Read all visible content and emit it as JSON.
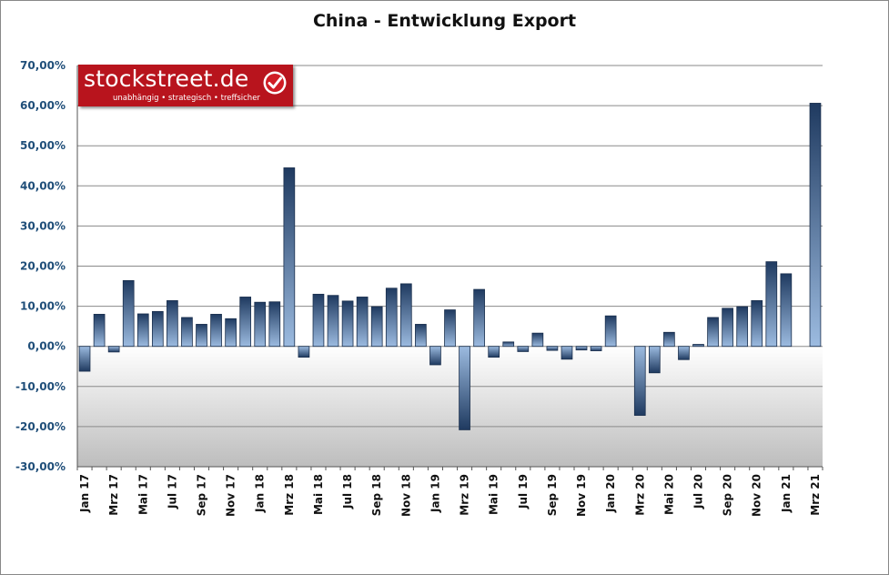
{
  "chart_data": {
    "type": "bar",
    "title": "China - Entwicklung Export",
    "ylim": [
      -30,
      70
    ],
    "yticks": [
      "70,00%",
      "60,00%",
      "50,00%",
      "40,00%",
      "30,00%",
      "20,00%",
      "10,00%",
      "0,00%",
      "-10,00%",
      "-20,00%",
      "-30,00%"
    ],
    "ytick_values": [
      70,
      60,
      50,
      40,
      30,
      20,
      10,
      0,
      -10,
      -20,
      -30
    ],
    "grid": true,
    "categories": [
      "Jan 17",
      "Feb 17",
      "Mrz 17",
      "Apr 17",
      "Mai 17",
      "Jun 17",
      "Jul 17",
      "Aug 17",
      "Sep 17",
      "Okt 17",
      "Nov 17",
      "Dez 17",
      "Jan 18",
      "Feb 18",
      "Mrz 18",
      "Apr 18",
      "Mai 18",
      "Jun 18",
      "Jul 18",
      "Aug 18",
      "Sep 18",
      "Okt 18",
      "Nov 18",
      "Dez 18",
      "Jan 19",
      "Feb 19",
      "Mrz 19",
      "Apr 19",
      "Mai 19",
      "Jun 19",
      "Jul 19",
      "Aug 19",
      "Sep 19",
      "Okt 19",
      "Nov 19",
      "Dez 19",
      "Jan 20",
      "Feb 20",
      "Mrz 20",
      "Apr 20",
      "Mai 20",
      "Jun 20",
      "Jul 20",
      "Aug 20",
      "Sep 20",
      "Okt 20",
      "Nov 20",
      "Dez 20",
      "Jan 21",
      "Feb 21",
      "Mrz 21"
    ],
    "visible_tick_labels": [
      "Jan 17",
      "Mrz 17",
      "Mai 17",
      "Jul 17",
      "Sep 17",
      "Nov 17",
      "Jan 18",
      "Mrz 18",
      "Mai 18",
      "Jul 18",
      "Sep 18",
      "Nov 18",
      "Jan 19",
      "Mrz 19",
      "Mai 19",
      "Jul 19",
      "Sep 19",
      "Nov 19",
      "Jan 20",
      "Mrz 20",
      "Mai 20",
      "Jul 20",
      "Sep 20",
      "Nov 20",
      "Jan 21",
      "Mrz 21"
    ],
    "values": [
      -6.2,
      8.0,
      -1.4,
      16.4,
      8.1,
      8.7,
      11.4,
      7.2,
      5.5,
      8.0,
      6.9,
      12.3,
      11.0,
      11.1,
      44.5,
      -2.7,
      13.0,
      12.7,
      11.3,
      12.3,
      9.9,
      14.5,
      15.6,
      5.5,
      -4.6,
      9.1,
      -20.8,
      14.2,
      -2.7,
      1.1,
      -1.3,
      3.3,
      -1.0,
      -3.2,
      -0.9,
      -1.1,
      7.6,
      0.0,
      -17.2,
      -6.6,
      3.5,
      -3.3,
      0.5,
      7.2,
      9.5,
      9.9,
      11.4,
      21.1,
      18.1,
      0.0,
      60.6
    ]
  },
  "logo": {
    "name": "stockstreet.de",
    "tagline": "unabhängig • strategisch • treffsicher"
  },
  "colors": {
    "bar_dark": "#1f3a60",
    "bar_light": "#9cbbe0",
    "tick_blue": "#1f4e79",
    "logo_red": "#b8141d"
  }
}
